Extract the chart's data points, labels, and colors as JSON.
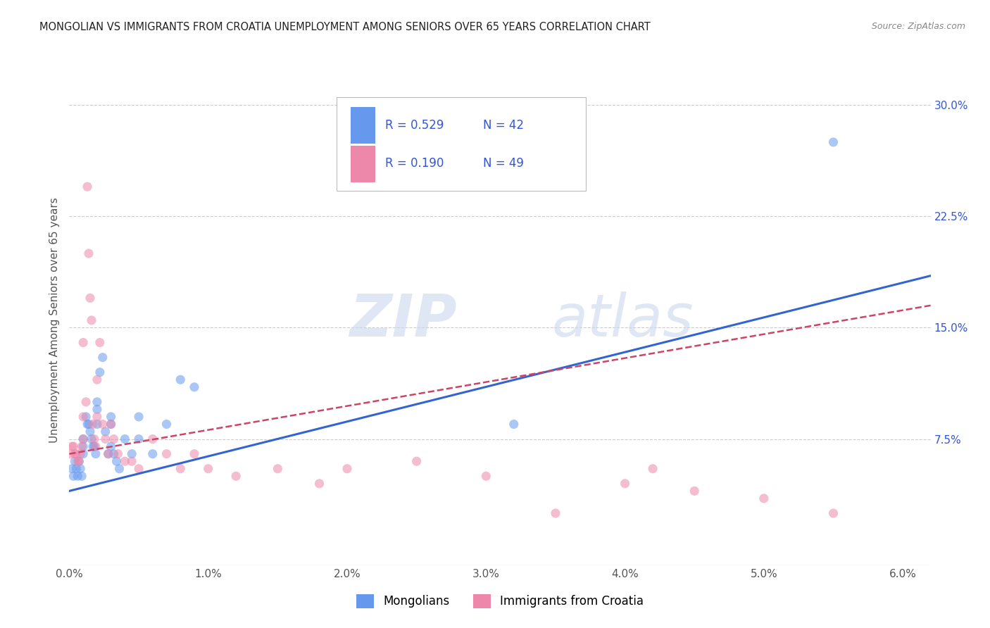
{
  "title": "MONGOLIAN VS IMMIGRANTS FROM CROATIA UNEMPLOYMENT AMONG SENIORS OVER 65 YEARS CORRELATION CHART",
  "source": "Source: ZipAtlas.com",
  "ylabel": "Unemployment Among Seniors over 65 years",
  "xlim": [
    0.0,
    0.062
  ],
  "ylim": [
    -0.01,
    0.32
  ],
  "watermark_zip": "ZIP",
  "watermark_atlas": "atlas",
  "legend_r1": "0.529",
  "legend_n1": "42",
  "legend_r2": "0.190",
  "legend_n2": "49",
  "blue_color": "#6699ee",
  "pink_color": "#ee88aa",
  "blue_line_color": "#3366cc",
  "pink_line_color": "#cc4466",
  "title_color": "#222222",
  "label_color": "#3355dd",
  "mongolians_x": [
    0.0002,
    0.0003,
    0.0004,
    0.0005,
    0.0006,
    0.0007,
    0.0008,
    0.0009,
    0.001,
    0.001,
    0.001,
    0.0012,
    0.0013,
    0.0014,
    0.0015,
    0.0016,
    0.0017,
    0.0018,
    0.0019,
    0.002,
    0.002,
    0.002,
    0.0022,
    0.0024,
    0.0026,
    0.0028,
    0.003,
    0.003,
    0.003,
    0.0032,
    0.0034,
    0.0036,
    0.004,
    0.0045,
    0.005,
    0.005,
    0.006,
    0.007,
    0.008,
    0.009,
    0.032,
    0.055
  ],
  "mongolians_y": [
    0.055,
    0.05,
    0.06,
    0.055,
    0.05,
    0.06,
    0.055,
    0.05,
    0.075,
    0.07,
    0.065,
    0.09,
    0.085,
    0.085,
    0.08,
    0.075,
    0.07,
    0.07,
    0.065,
    0.1,
    0.095,
    0.085,
    0.12,
    0.13,
    0.08,
    0.065,
    0.09,
    0.085,
    0.07,
    0.065,
    0.06,
    0.055,
    0.075,
    0.065,
    0.09,
    0.075,
    0.065,
    0.085,
    0.115,
    0.11,
    0.085,
    0.275
  ],
  "croatia_x": [
    0.0001,
    0.0002,
    0.0003,
    0.0004,
    0.0005,
    0.0006,
    0.0007,
    0.0008,
    0.0009,
    0.001,
    0.001,
    0.001,
    0.0012,
    0.0013,
    0.0014,
    0.0015,
    0.0016,
    0.0017,
    0.0018,
    0.0019,
    0.002,
    0.002,
    0.0022,
    0.0024,
    0.0026,
    0.0028,
    0.003,
    0.0032,
    0.0035,
    0.004,
    0.0045,
    0.005,
    0.006,
    0.007,
    0.008,
    0.009,
    0.01,
    0.012,
    0.015,
    0.018,
    0.02,
    0.025,
    0.03,
    0.035,
    0.04,
    0.042,
    0.045,
    0.05,
    0.055
  ],
  "croatia_y": [
    0.065,
    0.07,
    0.07,
    0.065,
    0.065,
    0.06,
    0.06,
    0.065,
    0.07,
    0.14,
    0.09,
    0.075,
    0.1,
    0.245,
    0.2,
    0.17,
    0.155,
    0.085,
    0.075,
    0.07,
    0.115,
    0.09,
    0.14,
    0.085,
    0.075,
    0.065,
    0.085,
    0.075,
    0.065,
    0.06,
    0.06,
    0.055,
    0.075,
    0.065,
    0.055,
    0.065,
    0.055,
    0.05,
    0.055,
    0.045,
    0.055,
    0.06,
    0.05,
    0.025,
    0.045,
    0.055,
    0.04,
    0.035,
    0.025
  ],
  "blue_trendline_x": [
    0.0,
    0.062
  ],
  "blue_trendline_y": [
    0.04,
    0.185
  ],
  "pink_trendline_x": [
    0.0,
    0.062
  ],
  "pink_trendline_y": [
    0.065,
    0.165
  ],
  "legend_bottom_labels": [
    "Mongolians",
    "Immigrants from Croatia"
  ],
  "background_color": "#ffffff",
  "grid_color": "#cccccc",
  "marker_size": 90,
  "marker_alpha": 0.55
}
